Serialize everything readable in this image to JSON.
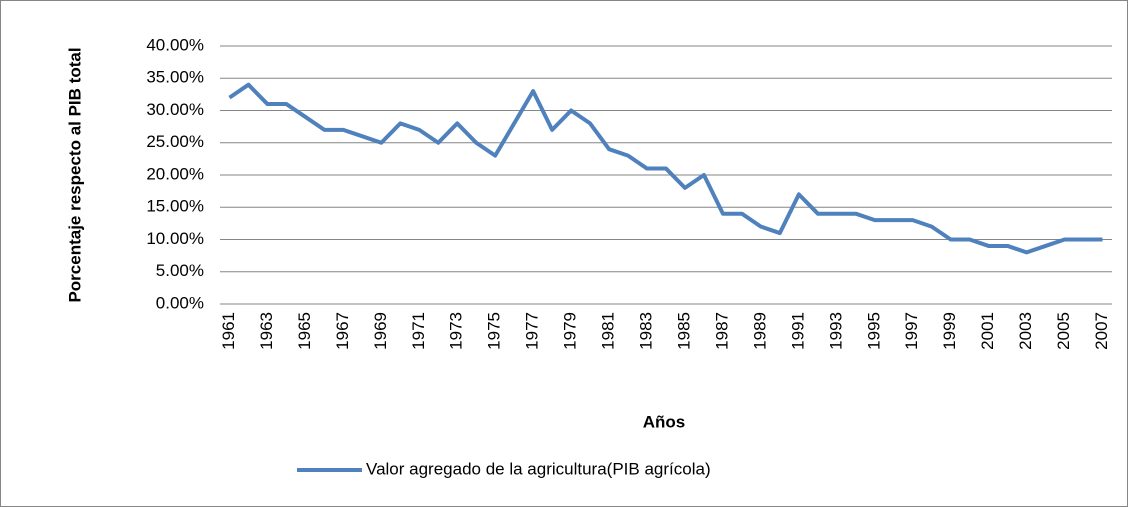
{
  "chart_data": {
    "type": "line",
    "x_label": "Años",
    "y_label": "Porcentaje respecto al PIB total",
    "categories": [
      "1961",
      null,
      "1963",
      null,
      "1965",
      null,
      "1967",
      null,
      "1969",
      null,
      "1971",
      null,
      "1973",
      null,
      "1975",
      null,
      "1977",
      null,
      "1979",
      null,
      "1981",
      null,
      "1983",
      null,
      "1985",
      null,
      "1987",
      null,
      "1989",
      null,
      "1991",
      null,
      "1993",
      null,
      "1995",
      null,
      "1997",
      null,
      "1999",
      null,
      "2001",
      null,
      "2003",
      null,
      "2005",
      null,
      "2007"
    ],
    "series": [
      {
        "name": "Valor agregado de la agricultura(PIB agrícola)",
        "color": "#4f81bd",
        "values": [
          32,
          34,
          31,
          31,
          29,
          27,
          27,
          26,
          25,
          28,
          27,
          25,
          28,
          25,
          23,
          28,
          33,
          27,
          30,
          28,
          24,
          23,
          21,
          21,
          18,
          20,
          14,
          14,
          12,
          11,
          17,
          14,
          14,
          14,
          13,
          13,
          13,
          12,
          10,
          10,
          9,
          9,
          8,
          9,
          10,
          10,
          10
        ]
      }
    ],
    "ylim": [
      0,
      40
    ],
    "yticks": [
      {
        "value": 0,
        "label": "0.00%"
      },
      {
        "value": 5,
        "label": "5.00%"
      },
      {
        "value": 10,
        "label": "10.00%"
      },
      {
        "value": 15,
        "label": "15.00%"
      },
      {
        "value": 20,
        "label": "20.00%"
      },
      {
        "value": 25,
        "label": "25.00%"
      },
      {
        "value": 30,
        "label": "30.00%"
      },
      {
        "value": 35,
        "label": "35.00%"
      },
      {
        "value": 40,
        "label": "40.00%"
      }
    ],
    "grid": true,
    "legend": "bottom"
  }
}
